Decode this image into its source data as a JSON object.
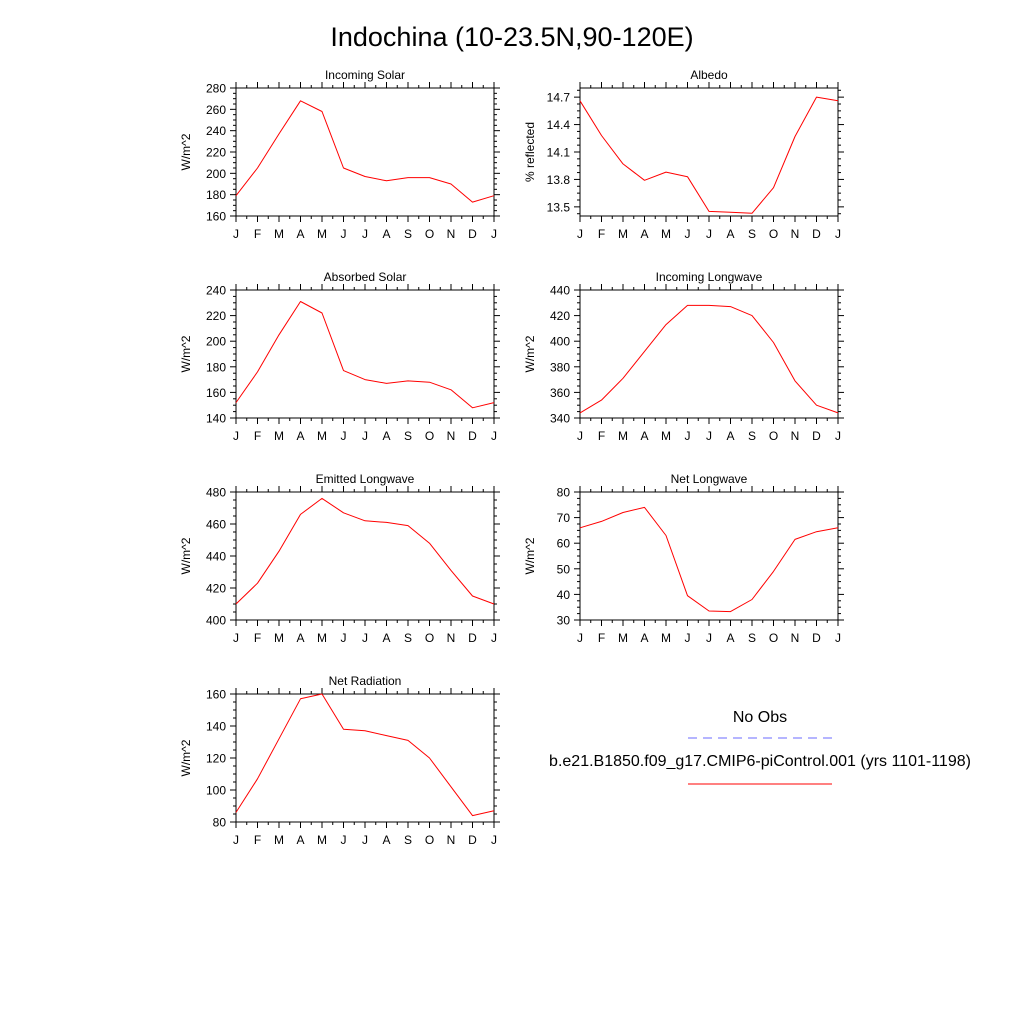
{
  "title": "Indochina (10-23.5N,90-120E)",
  "months": [
    "J",
    "F",
    "M",
    "A",
    "M",
    "J",
    "J",
    "A",
    "S",
    "O",
    "N",
    "D",
    "J"
  ],
  "colors": {
    "model": "#ff0000",
    "obs": "#6b6bff",
    "axis": "#000000"
  },
  "chart_data": [
    {
      "type": "line",
      "title": "Incoming Solar",
      "ylabel": "W/m^2",
      "ylim": [
        160,
        280
      ],
      "yticks": [
        160,
        180,
        200,
        220,
        240,
        260,
        280
      ],
      "ytick_labels": [
        "160",
        "180",
        "200",
        "220",
        "240",
        "260",
        "280"
      ],
      "values": [
        179,
        205,
        237,
        268,
        258,
        205,
        197,
        193,
        196,
        196,
        190,
        173,
        179
      ]
    },
    {
      "type": "line",
      "title": "Albedo",
      "ylabel": "% reflected",
      "ylim": [
        13.4,
        14.8
      ],
      "yticks": [
        13.5,
        13.8,
        14.1,
        14.4,
        14.7
      ],
      "ytick_labels": [
        "13.5",
        "13.8",
        "14.1",
        "14.4",
        "14.7"
      ],
      "values": [
        14.66,
        14.28,
        13.97,
        13.79,
        13.88,
        13.83,
        13.45,
        13.44,
        13.43,
        13.71,
        14.27,
        14.7,
        14.66
      ]
    },
    {
      "type": "line",
      "title": "Absorbed Solar",
      "ylabel": "W/m^2",
      "ylim": [
        140,
        240
      ],
      "yticks": [
        140,
        160,
        180,
        200,
        220,
        240
      ],
      "ytick_labels": [
        "140",
        "160",
        "180",
        "200",
        "220",
        "240"
      ],
      "values": [
        152,
        176,
        205,
        231,
        222,
        177,
        170,
        167,
        169,
        168,
        162,
        148,
        152
      ]
    },
    {
      "type": "line",
      "title": "Incoming Longwave",
      "ylabel": "W/m^2",
      "ylim": [
        340,
        440
      ],
      "yticks": [
        340,
        360,
        380,
        400,
        420,
        440
      ],
      "ytick_labels": [
        "340",
        "360",
        "380",
        "400",
        "420",
        "440"
      ],
      "values": [
        344,
        354,
        371,
        392,
        413,
        428,
        428,
        427,
        420,
        399,
        369,
        350,
        344
      ]
    },
    {
      "type": "line",
      "title": "Emitted Longwave",
      "ylabel": "W/m^2",
      "ylim": [
        400,
        480
      ],
      "yticks": [
        400,
        420,
        440,
        460,
        480
      ],
      "ytick_labels": [
        "400",
        "420",
        "440",
        "460",
        "480"
      ],
      "values": [
        410,
        423,
        443,
        466,
        476,
        467,
        462,
        461,
        459,
        448,
        431,
        415,
        410
      ]
    },
    {
      "type": "line",
      "title": "Net Longwave",
      "ylabel": "W/m^2",
      "ylim": [
        30,
        80
      ],
      "yticks": [
        30,
        40,
        50,
        60,
        70,
        80
      ],
      "ytick_labels": [
        "30",
        "40",
        "50",
        "60",
        "70",
        "80"
      ],
      "values": [
        66,
        68.5,
        72,
        74,
        63,
        39.5,
        33.5,
        33.3,
        38,
        49,
        61.5,
        64.5,
        66
      ]
    },
    {
      "type": "line",
      "title": "Net Radiation",
      "ylabel": "W/m^2",
      "ylim": [
        80,
        160
      ],
      "yticks": [
        80,
        100,
        120,
        140,
        160
      ],
      "ytick_labels": [
        "80",
        "100",
        "120",
        "140",
        "160"
      ],
      "values": [
        86,
        107,
        132,
        157,
        160,
        138,
        137,
        134,
        131,
        120,
        102,
        84,
        87
      ]
    }
  ],
  "legend": {
    "obs_label": "No Obs",
    "model_label": "b.e21.B1850.f09_g17.CMIP6-piControl.001 (yrs 1101-1198)"
  }
}
